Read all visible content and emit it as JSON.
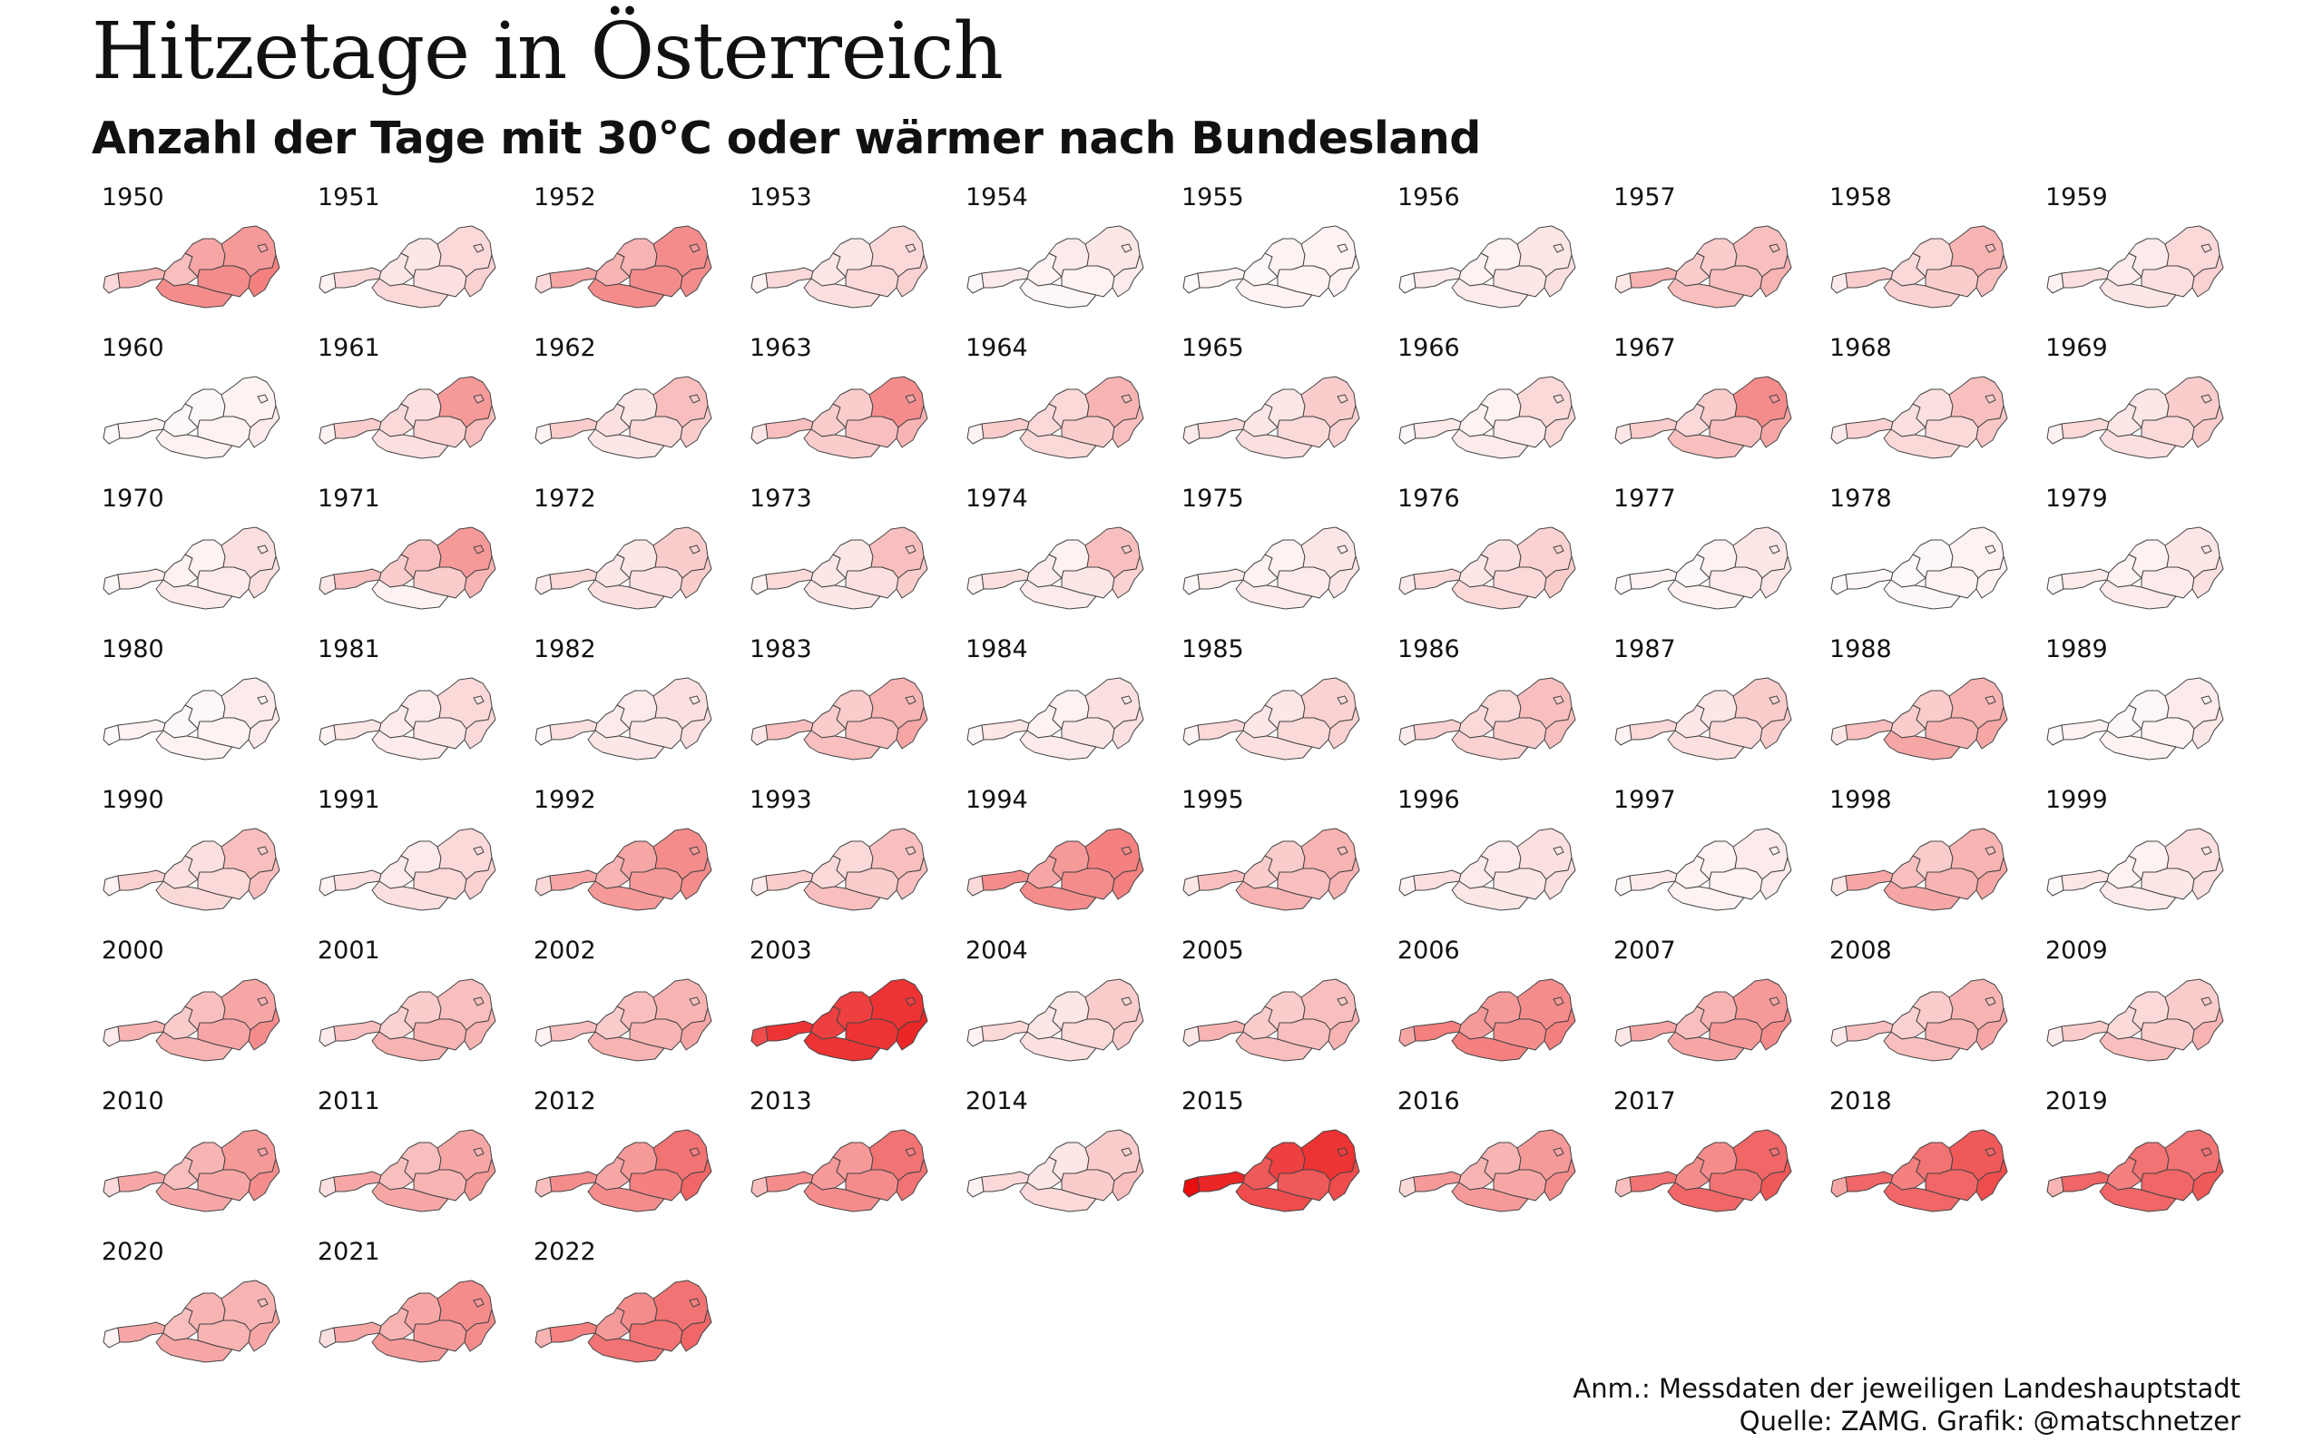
{
  "title": "Hitzetage in Österreich",
  "subtitle": "Anzahl der Tage mit 30°C oder wärmer nach Bundesland",
  "notes": {
    "line1": "Anm.: Messdaten der jeweiligen Landeshauptstadt",
    "line2": "Quelle: ZAMG. Grafik: @matschnetzer"
  },
  "chart_data": {
    "type": "heatmap",
    "description_regions": [
      "Vorarlberg",
      "Tirol",
      "Salzburg",
      "Kärnten",
      "Oberösterreich",
      "Steiermark",
      "Niederösterreich",
      "Wien",
      "Burgenland"
    ],
    "color_scale": {
      "low": "#ffffff",
      "high": "#e80000"
    },
    "years": [
      {
        "year": "1950",
        "values": [
          0.15,
          0.3,
          0.25,
          0.45,
          0.35,
          0.45,
          0.4,
          0.35,
          0.5
        ]
      },
      {
        "year": "1951",
        "values": [
          0.05,
          0.15,
          0.1,
          0.15,
          0.1,
          0.12,
          0.15,
          0.15,
          0.18
        ]
      },
      {
        "year": "1952",
        "values": [
          0.15,
          0.35,
          0.3,
          0.45,
          0.3,
          0.45,
          0.45,
          0.4,
          0.45
        ]
      },
      {
        "year": "1953",
        "values": [
          0.05,
          0.15,
          0.1,
          0.12,
          0.1,
          0.15,
          0.15,
          0.15,
          0.18
        ]
      },
      {
        "year": "1954",
        "values": [
          0.03,
          0.08,
          0.05,
          0.03,
          0.08,
          0.05,
          0.1,
          0.1,
          0.08
        ]
      },
      {
        "year": "1955",
        "values": [
          0.02,
          0.05,
          0.03,
          0.05,
          0.05,
          0.05,
          0.05,
          0.05,
          0.05
        ]
      },
      {
        "year": "1956",
        "values": [
          0.02,
          0.08,
          0.05,
          0.08,
          0.05,
          0.1,
          0.1,
          0.1,
          0.12
        ]
      },
      {
        "year": "1957",
        "values": [
          0.1,
          0.3,
          0.2,
          0.25,
          0.2,
          0.25,
          0.25,
          0.25,
          0.3
        ]
      },
      {
        "year": "1958",
        "values": [
          0.08,
          0.2,
          0.15,
          0.18,
          0.15,
          0.2,
          0.3,
          0.25,
          0.25
        ]
      },
      {
        "year": "1959",
        "values": [
          0.05,
          0.12,
          0.08,
          0.1,
          0.08,
          0.12,
          0.15,
          0.15,
          0.18
        ]
      },
      {
        "year": "1960",
        "values": [
          0.02,
          0.05,
          0.03,
          0.05,
          0.03,
          0.05,
          0.05,
          0.05,
          0.08
        ]
      },
      {
        "year": "1961",
        "values": [
          0.05,
          0.2,
          0.15,
          0.12,
          0.12,
          0.18,
          0.4,
          0.3,
          0.25
        ]
      },
      {
        "year": "1962",
        "values": [
          0.05,
          0.2,
          0.12,
          0.1,
          0.1,
          0.15,
          0.25,
          0.2,
          0.2
        ]
      },
      {
        "year": "1963",
        "values": [
          0.1,
          0.25,
          0.2,
          0.2,
          0.2,
          0.25,
          0.45,
          0.35,
          0.3
        ]
      },
      {
        "year": "1964",
        "values": [
          0.05,
          0.2,
          0.15,
          0.15,
          0.15,
          0.2,
          0.3,
          0.25,
          0.25
        ]
      },
      {
        "year": "1965",
        "values": [
          0.08,
          0.15,
          0.1,
          0.12,
          0.1,
          0.15,
          0.2,
          0.15,
          0.18
        ]
      },
      {
        "year": "1966",
        "values": [
          0.03,
          0.08,
          0.05,
          0.08,
          0.05,
          0.08,
          0.15,
          0.12,
          0.15
        ]
      },
      {
        "year": "1967",
        "values": [
          0.1,
          0.2,
          0.15,
          0.25,
          0.2,
          0.25,
          0.45,
          0.4,
          0.35
        ]
      },
      {
        "year": "1968",
        "values": [
          0.08,
          0.18,
          0.12,
          0.15,
          0.12,
          0.15,
          0.25,
          0.2,
          0.22
        ]
      },
      {
        "year": "1969",
        "values": [
          0.05,
          0.15,
          0.1,
          0.12,
          0.1,
          0.15,
          0.2,
          0.18,
          0.2
        ]
      },
      {
        "year": "1970",
        "values": [
          0.03,
          0.08,
          0.05,
          0.08,
          0.05,
          0.08,
          0.12,
          0.1,
          0.12
        ]
      },
      {
        "year": "1971",
        "values": [
          0.1,
          0.25,
          0.2,
          0.05,
          0.25,
          0.2,
          0.4,
          0.4,
          0.3
        ]
      },
      {
        "year": "1972",
        "values": [
          0.08,
          0.15,
          0.1,
          0.12,
          0.1,
          0.12,
          0.2,
          0.18,
          0.2
        ]
      },
      {
        "year": "1973",
        "values": [
          0.05,
          0.15,
          0.1,
          0.1,
          0.1,
          0.12,
          0.25,
          0.2,
          0.2
        ]
      },
      {
        "year": "1974",
        "values": [
          0.05,
          0.12,
          0.08,
          0.08,
          0.05,
          0.1,
          0.25,
          0.2,
          0.18
        ]
      },
      {
        "year": "1975",
        "values": [
          0.03,
          0.08,
          0.05,
          0.08,
          0.05,
          0.08,
          0.1,
          0.08,
          0.1
        ]
      },
      {
        "year": "1976",
        "values": [
          0.08,
          0.15,
          0.1,
          0.15,
          0.12,
          0.15,
          0.18,
          0.18,
          0.2
        ]
      },
      {
        "year": "1977",
        "values": [
          0.02,
          0.05,
          0.03,
          0.05,
          0.05,
          0.08,
          0.1,
          0.08,
          0.1
        ]
      },
      {
        "year": "1978",
        "values": [
          0.02,
          0.03,
          0.02,
          0.03,
          0.03,
          0.05,
          0.05,
          0.05,
          0.05
        ]
      },
      {
        "year": "1979",
        "values": [
          0.03,
          0.08,
          0.05,
          0.08,
          0.05,
          0.08,
          0.1,
          0.1,
          0.12
        ]
      },
      {
        "year": "1980",
        "values": [
          0.02,
          0.05,
          0.03,
          0.05,
          0.03,
          0.05,
          0.08,
          0.05,
          0.08
        ]
      },
      {
        "year": "1981",
        "values": [
          0.05,
          0.1,
          0.08,
          0.08,
          0.08,
          0.1,
          0.15,
          0.12,
          0.15
        ]
      },
      {
        "year": "1982",
        "values": [
          0.03,
          0.12,
          0.08,
          0.1,
          0.08,
          0.1,
          0.12,
          0.1,
          0.12
        ]
      },
      {
        "year": "1983",
        "values": [
          0.1,
          0.25,
          0.2,
          0.25,
          0.2,
          0.25,
          0.3,
          0.25,
          0.35
        ]
      },
      {
        "year": "1984",
        "values": [
          0.03,
          0.1,
          0.05,
          0.08,
          0.05,
          0.1,
          0.12,
          0.1,
          0.12
        ]
      },
      {
        "year": "1985",
        "values": [
          0.05,
          0.15,
          0.1,
          0.12,
          0.1,
          0.15,
          0.18,
          0.15,
          0.18
        ]
      },
      {
        "year": "1986",
        "values": [
          0.08,
          0.18,
          0.15,
          0.18,
          0.15,
          0.2,
          0.25,
          0.2,
          0.25
        ]
      },
      {
        "year": "1987",
        "values": [
          0.05,
          0.15,
          0.1,
          0.12,
          0.1,
          0.15,
          0.2,
          0.18,
          0.2
        ]
      },
      {
        "year": "1988",
        "values": [
          0.1,
          0.25,
          0.2,
          0.35,
          0.2,
          0.3,
          0.3,
          0.25,
          0.35
        ]
      },
      {
        "year": "1989",
        "values": [
          0.02,
          0.05,
          0.03,
          0.05,
          0.03,
          0.05,
          0.08,
          0.05,
          0.1
        ]
      },
      {
        "year": "1990",
        "values": [
          0.05,
          0.18,
          0.12,
          0.15,
          0.12,
          0.15,
          0.25,
          0.2,
          0.25
        ]
      },
      {
        "year": "1991",
        "values": [
          0.05,
          0.12,
          0.08,
          0.12,
          0.08,
          0.15,
          0.15,
          0.15,
          0.18
        ]
      },
      {
        "year": "1992",
        "values": [
          0.15,
          0.35,
          0.3,
          0.4,
          0.35,
          0.4,
          0.45,
          0.4,
          0.45
        ]
      },
      {
        "year": "1993",
        "values": [
          0.08,
          0.2,
          0.15,
          0.25,
          0.15,
          0.2,
          0.25,
          0.2,
          0.25
        ]
      },
      {
        "year": "1994",
        "values": [
          0.15,
          0.45,
          0.35,
          0.45,
          0.4,
          0.45,
          0.5,
          0.45,
          0.5
        ]
      },
      {
        "year": "1995",
        "values": [
          0.1,
          0.25,
          0.2,
          0.3,
          0.2,
          0.25,
          0.3,
          0.25,
          0.3
        ]
      },
      {
        "year": "1996",
        "values": [
          0.05,
          0.12,
          0.08,
          0.1,
          0.08,
          0.1,
          0.12,
          0.1,
          0.12
        ]
      },
      {
        "year": "1997",
        "values": [
          0.03,
          0.08,
          0.05,
          0.05,
          0.05,
          0.05,
          0.08,
          0.05,
          0.08
        ]
      },
      {
        "year": "1998",
        "values": [
          0.1,
          0.35,
          0.25,
          0.35,
          0.2,
          0.3,
          0.3,
          0.25,
          0.35
        ]
      },
      {
        "year": "1999",
        "values": [
          0.03,
          0.1,
          0.05,
          0.08,
          0.05,
          0.1,
          0.12,
          0.1,
          0.12
        ]
      },
      {
        "year": "2000",
        "values": [
          0.08,
          0.3,
          0.2,
          0.3,
          0.25,
          0.35,
          0.35,
          0.3,
          0.45
        ]
      },
      {
        "year": "2001",
        "values": [
          0.08,
          0.25,
          0.18,
          0.3,
          0.2,
          0.3,
          0.25,
          0.25,
          0.3
        ]
      },
      {
        "year": "2002",
        "values": [
          0.05,
          0.25,
          0.2,
          0.3,
          0.25,
          0.3,
          0.3,
          0.25,
          0.35
        ]
      },
      {
        "year": "2003",
        "values": [
          0.7,
          0.8,
          0.75,
          0.8,
          0.75,
          0.8,
          0.8,
          0.75,
          0.85
        ]
      },
      {
        "year": "2004",
        "values": [
          0.05,
          0.15,
          0.1,
          0.12,
          0.1,
          0.15,
          0.2,
          0.15,
          0.2
        ]
      },
      {
        "year": "2005",
        "values": [
          0.1,
          0.3,
          0.2,
          0.25,
          0.2,
          0.25,
          0.25,
          0.2,
          0.3
        ]
      },
      {
        "year": "2006",
        "values": [
          0.35,
          0.5,
          0.4,
          0.5,
          0.4,
          0.45,
          0.45,
          0.4,
          0.5
        ]
      },
      {
        "year": "2007",
        "values": [
          0.1,
          0.35,
          0.25,
          0.35,
          0.3,
          0.4,
          0.4,
          0.35,
          0.45
        ]
      },
      {
        "year": "2008",
        "values": [
          0.08,
          0.25,
          0.18,
          0.25,
          0.2,
          0.3,
          0.3,
          0.25,
          0.35
        ]
      },
      {
        "year": "2009",
        "values": [
          0.08,
          0.2,
          0.15,
          0.25,
          0.15,
          0.2,
          0.2,
          0.2,
          0.3
        ]
      },
      {
        "year": "2010",
        "values": [
          0.15,
          0.35,
          0.25,
          0.35,
          0.3,
          0.35,
          0.4,
          0.35,
          0.45
        ]
      },
      {
        "year": "2011",
        "values": [
          0.12,
          0.35,
          0.25,
          0.35,
          0.25,
          0.3,
          0.35,
          0.3,
          0.4
        ]
      },
      {
        "year": "2012",
        "values": [
          0.25,
          0.45,
          0.35,
          0.45,
          0.4,
          0.5,
          0.55,
          0.5,
          0.6
        ]
      },
      {
        "year": "2013",
        "values": [
          0.25,
          0.45,
          0.4,
          0.45,
          0.4,
          0.45,
          0.55,
          0.5,
          0.55
        ]
      },
      {
        "year": "2014",
        "values": [
          0.05,
          0.15,
          0.1,
          0.15,
          0.1,
          0.2,
          0.2,
          0.18,
          0.25
        ]
      },
      {
        "year": "2015",
        "values": [
          0.95,
          0.85,
          0.65,
          0.7,
          0.75,
          0.65,
          0.8,
          0.75,
          0.7
        ]
      },
      {
        "year": "2016",
        "values": [
          0.15,
          0.4,
          0.3,
          0.4,
          0.3,
          0.35,
          0.4,
          0.35,
          0.45
        ]
      },
      {
        "year": "2017",
        "values": [
          0.25,
          0.55,
          0.45,
          0.6,
          0.45,
          0.55,
          0.6,
          0.55,
          0.65
        ]
      },
      {
        "year": "2018",
        "values": [
          0.35,
          0.6,
          0.5,
          0.6,
          0.55,
          0.6,
          0.65,
          0.6,
          0.7
        ]
      },
      {
        "year": "2019",
        "values": [
          0.3,
          0.6,
          0.5,
          0.6,
          0.55,
          0.6,
          0.55,
          0.55,
          0.65
        ]
      },
      {
        "year": "2020",
        "values": [
          0.05,
          0.35,
          0.25,
          0.35,
          0.3,
          0.3,
          0.3,
          0.25,
          0.35
        ]
      },
      {
        "year": "2021",
        "values": [
          0.12,
          0.35,
          0.3,
          0.4,
          0.35,
          0.4,
          0.45,
          0.4,
          0.45
        ]
      },
      {
        "year": "2022",
        "values": [
          0.3,
          0.5,
          0.4,
          0.55,
          0.45,
          0.55,
          0.55,
          0.5,
          0.6
        ]
      }
    ]
  }
}
